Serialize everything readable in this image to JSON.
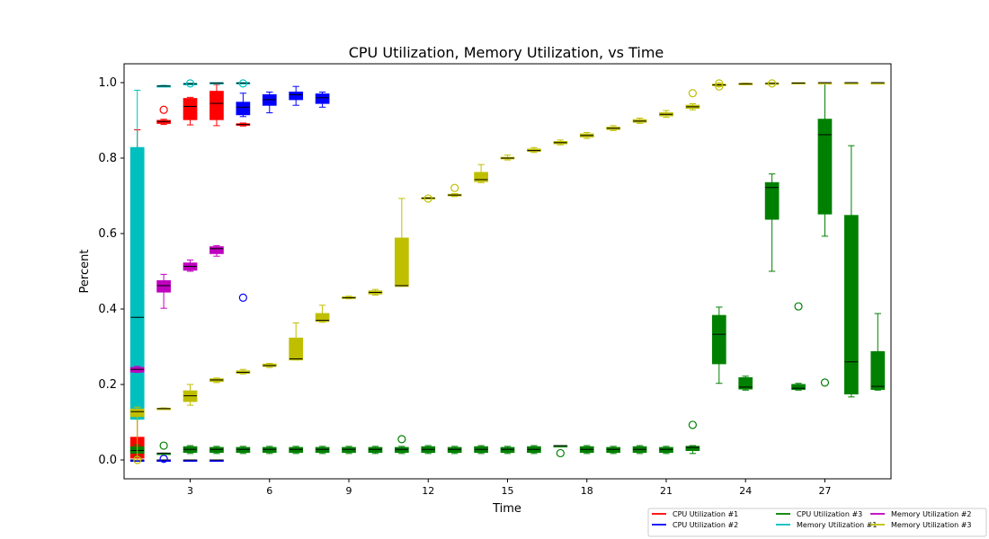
{
  "chart_data": {
    "type": "box",
    "title": "CPU Utilization, Memory Utilization, vs Time",
    "xlabel": "Time",
    "ylabel": "Percent",
    "xlim": [
      0.5,
      29.5
    ],
    "ylim": [
      -0.05,
      1.05
    ],
    "xticks": [
      3,
      6,
      9,
      12,
      15,
      18,
      21,
      24,
      27
    ],
    "yticks": [
      "0.0",
      "0.2",
      "0.4",
      "0.6",
      "0.8",
      "1.0"
    ],
    "legend_position": "bottom-right",
    "series": [
      {
        "name": "CPU Utilization #1",
        "color": "#ff0000",
        "boxes": [
          {
            "x": 1,
            "whislo": 0.0,
            "q1": 0.005,
            "med": 0.03,
            "q3": 0.06,
            "whishi": 0.875,
            "fliers": []
          },
          {
            "x": 2,
            "whislo": 0.889,
            "q1": 0.892,
            "med": 0.897,
            "q3": 0.9,
            "whishi": 0.903,
            "fliers": [
              0.928
            ]
          },
          {
            "x": 3,
            "whislo": 0.888,
            "q1": 0.902,
            "med": 0.937,
            "q3": 0.958,
            "whishi": 0.961,
            "fliers": []
          },
          {
            "x": 4,
            "whislo": 0.886,
            "q1": 0.902,
            "med": 0.945,
            "q3": 0.977,
            "whishi": 0.995,
            "fliers": []
          },
          {
            "x": 5,
            "whislo": 0.885,
            "q1": 0.887,
            "med": 0.889,
            "q3": 0.891,
            "whishi": 0.893,
            "fliers": []
          }
        ]
      },
      {
        "name": "CPU Utilization #2",
        "color": "#0000ff",
        "boxes": [
          {
            "x": 1,
            "whislo": 0.0,
            "q1": 0.0,
            "med": 0.0,
            "q3": 0.0,
            "whishi": 0.0,
            "fliers": []
          },
          {
            "x": 2,
            "whislo": 0.0,
            "q1": 0.0,
            "med": 0.0,
            "q3": 0.0,
            "whishi": 0.0,
            "fliers": [
              0.003
            ]
          },
          {
            "x": 3,
            "whislo": 0.0,
            "q1": 0.0,
            "med": 0.0,
            "q3": 0.0,
            "whishi": 0.0,
            "fliers": []
          },
          {
            "x": 4,
            "whislo": 0.0,
            "q1": 0.0,
            "med": 0.0,
            "q3": 0.0,
            "whishi": 0.0,
            "fliers": []
          },
          {
            "x": 5,
            "whislo": 0.91,
            "q1": 0.915,
            "med": 0.935,
            "q3": 0.948,
            "whishi": 0.972,
            "fliers": [
              0.43
            ]
          },
          {
            "x": 6,
            "whislo": 0.92,
            "q1": 0.94,
            "med": 0.955,
            "q3": 0.968,
            "whishi": 0.975,
            "fliers": []
          },
          {
            "x": 7,
            "whislo": 0.94,
            "q1": 0.955,
            "med": 0.968,
            "q3": 0.975,
            "whishi": 0.99,
            "fliers": []
          },
          {
            "x": 8,
            "whislo": 0.935,
            "q1": 0.945,
            "med": 0.96,
            "q3": 0.97,
            "whishi": 0.975,
            "fliers": []
          }
        ]
      },
      {
        "name": "CPU Utilization #3",
        "color": "#008000",
        "boxes": [
          {
            "x": 1,
            "whislo": 0.01,
            "q1": 0.018,
            "med": 0.025,
            "q3": 0.035,
            "whishi": 0.04,
            "fliers": []
          },
          {
            "x": 2,
            "whislo": 0.018,
            "q1": 0.018,
            "med": 0.018,
            "q3": 0.018,
            "whishi": 0.018,
            "fliers": [
              0.038
            ]
          },
          {
            "x": 3,
            "whislo": 0.017,
            "q1": 0.02,
            "med": 0.028,
            "q3": 0.035,
            "whishi": 0.038,
            "fliers": []
          },
          {
            "x": 4,
            "whislo": 0.017,
            "q1": 0.02,
            "med": 0.028,
            "q3": 0.033,
            "whishi": 0.036,
            "fliers": []
          },
          {
            "x": 5,
            "whislo": 0.017,
            "q1": 0.02,
            "med": 0.028,
            "q3": 0.033,
            "whishi": 0.036,
            "fliers": []
          },
          {
            "x": 6,
            "whislo": 0.017,
            "q1": 0.02,
            "med": 0.028,
            "q3": 0.033,
            "whishi": 0.036,
            "fliers": []
          },
          {
            "x": 7,
            "whislo": 0.017,
            "q1": 0.02,
            "med": 0.028,
            "q3": 0.033,
            "whishi": 0.036,
            "fliers": []
          },
          {
            "x": 8,
            "whislo": 0.017,
            "q1": 0.02,
            "med": 0.028,
            "q3": 0.033,
            "whishi": 0.036,
            "fliers": []
          },
          {
            "x": 9,
            "whislo": 0.017,
            "q1": 0.02,
            "med": 0.028,
            "q3": 0.033,
            "whishi": 0.036,
            "fliers": []
          },
          {
            "x": 10,
            "whislo": 0.017,
            "q1": 0.02,
            "med": 0.028,
            "q3": 0.033,
            "whishi": 0.036,
            "fliers": []
          },
          {
            "x": 11,
            "whislo": 0.017,
            "q1": 0.02,
            "med": 0.028,
            "q3": 0.033,
            "whishi": 0.036,
            "fliers": [
              0.055
            ]
          },
          {
            "x": 12,
            "whislo": 0.017,
            "q1": 0.02,
            "med": 0.028,
            "q3": 0.035,
            "whishi": 0.038,
            "fliers": []
          },
          {
            "x": 13,
            "whislo": 0.017,
            "q1": 0.02,
            "med": 0.028,
            "q3": 0.033,
            "whishi": 0.036,
            "fliers": []
          },
          {
            "x": 14,
            "whislo": 0.017,
            "q1": 0.02,
            "med": 0.028,
            "q3": 0.035,
            "whishi": 0.038,
            "fliers": []
          },
          {
            "x": 15,
            "whislo": 0.017,
            "q1": 0.02,
            "med": 0.028,
            "q3": 0.033,
            "whishi": 0.036,
            "fliers": []
          },
          {
            "x": 16,
            "whislo": 0.017,
            "q1": 0.02,
            "med": 0.028,
            "q3": 0.035,
            "whishi": 0.038,
            "fliers": []
          },
          {
            "x": 17,
            "whislo": 0.038,
            "q1": 0.038,
            "med": 0.038,
            "q3": 0.038,
            "whishi": 0.038,
            "fliers": [
              0.018
            ]
          },
          {
            "x": 18,
            "whislo": 0.017,
            "q1": 0.02,
            "med": 0.028,
            "q3": 0.035,
            "whishi": 0.038,
            "fliers": []
          },
          {
            "x": 19,
            "whislo": 0.017,
            "q1": 0.02,
            "med": 0.028,
            "q3": 0.033,
            "whishi": 0.036,
            "fliers": []
          },
          {
            "x": 20,
            "whislo": 0.017,
            "q1": 0.02,
            "med": 0.028,
            "q3": 0.035,
            "whishi": 0.038,
            "fliers": []
          },
          {
            "x": 21,
            "whislo": 0.017,
            "q1": 0.02,
            "med": 0.028,
            "q3": 0.033,
            "whishi": 0.036,
            "fliers": []
          },
          {
            "x": 22,
            "whislo": 0.017,
            "q1": 0.025,
            "med": 0.033,
            "q3": 0.036,
            "whishi": 0.038,
            "fliers": [
              0.093
            ]
          },
          {
            "x": 23,
            "whislo": 0.203,
            "q1": 0.255,
            "med": 0.333,
            "q3": 0.383,
            "whishi": 0.405,
            "fliers": []
          },
          {
            "x": 24,
            "whislo": 0.185,
            "q1": 0.188,
            "med": 0.193,
            "q3": 0.218,
            "whishi": 0.222,
            "fliers": []
          },
          {
            "x": 25,
            "whislo": 0.5,
            "q1": 0.638,
            "med": 0.722,
            "q3": 0.735,
            "whishi": 0.758,
            "fliers": []
          },
          {
            "x": 26,
            "whislo": 0.185,
            "q1": 0.187,
            "med": 0.19,
            "q3": 0.2,
            "whishi": 0.203,
            "fliers": [
              0.407
            ]
          },
          {
            "x": 27,
            "whislo": 0.593,
            "q1": 0.652,
            "med": 0.862,
            "q3": 0.903,
            "whishi": 1.0,
            "fliers": [
              0.205
            ]
          },
          {
            "x": 28,
            "whislo": 0.167,
            "q1": 0.175,
            "med": 0.26,
            "q3": 0.648,
            "whishi": 0.833,
            "fliers": []
          },
          {
            "x": 29,
            "whislo": 0.185,
            "q1": 0.187,
            "med": 0.195,
            "q3": 0.287,
            "whishi": 0.388,
            "fliers": []
          }
        ]
      },
      {
        "name": "Memory Utilization #1",
        "color": "#00bfbf",
        "boxes": [
          {
            "x": 1,
            "whislo": 0.108,
            "q1": 0.108,
            "med": 0.378,
            "q3": 0.828,
            "whishi": 0.98,
            "fliers": []
          },
          {
            "x": 2,
            "whislo": 0.989,
            "q1": 0.99,
            "med": 0.991,
            "q3": 0.992,
            "whishi": 0.993,
            "fliers": []
          },
          {
            "x": 3,
            "whislo": 0.995,
            "q1": 0.996,
            "med": 0.997,
            "q3": 0.998,
            "whishi": 0.999,
            "fliers": [
              0.998
            ]
          },
          {
            "x": 4,
            "whislo": 0.998,
            "q1": 0.999,
            "med": 0.999,
            "q3": 1.0,
            "whishi": 1.0,
            "fliers": []
          },
          {
            "x": 5,
            "whislo": 0.997,
            "q1": 0.998,
            "med": 0.999,
            "q3": 1.0,
            "whishi": 1.0,
            "fliers": [
              0.998
            ]
          }
        ]
      },
      {
        "name": "Memory Utilization #2",
        "color": "#bf00bf",
        "boxes": [
          {
            "x": 1,
            "whislo": 0.232,
            "q1": 0.233,
            "med": 0.24,
            "q3": 0.245,
            "whishi": 0.248,
            "fliers": []
          },
          {
            "x": 2,
            "whislo": 0.402,
            "q1": 0.445,
            "med": 0.462,
            "q3": 0.475,
            "whishi": 0.492,
            "fliers": []
          },
          {
            "x": 3,
            "whislo": 0.5,
            "q1": 0.503,
            "med": 0.513,
            "q3": 0.522,
            "whishi": 0.53,
            "fliers": []
          },
          {
            "x": 4,
            "whislo": 0.54,
            "q1": 0.547,
            "med": 0.56,
            "q3": 0.565,
            "whishi": 0.568,
            "fliers": []
          }
        ]
      },
      {
        "name": "Memory Utilization #3",
        "color": "#bfbf00",
        "boxes": [
          {
            "x": 1,
            "whislo": 0.0,
            "q1": 0.115,
            "med": 0.128,
            "q3": 0.135,
            "whishi": 0.14,
            "fliers": [
              0.0
            ]
          },
          {
            "x": 2,
            "whislo": 0.134,
            "q1": 0.135,
            "med": 0.136,
            "q3": 0.137,
            "whishi": 0.138,
            "fliers": []
          },
          {
            "x": 3,
            "whislo": 0.145,
            "q1": 0.155,
            "med": 0.17,
            "q3": 0.183,
            "whishi": 0.2,
            "fliers": []
          },
          {
            "x": 4,
            "whislo": 0.205,
            "q1": 0.208,
            "med": 0.212,
            "q3": 0.215,
            "whishi": 0.217,
            "fliers": []
          },
          {
            "x": 5,
            "whislo": 0.228,
            "q1": 0.23,
            "med": 0.232,
            "q3": 0.236,
            "whishi": 0.24,
            "fliers": []
          },
          {
            "x": 6,
            "whislo": 0.245,
            "q1": 0.248,
            "med": 0.25,
            "q3": 0.254,
            "whishi": 0.256,
            "fliers": []
          },
          {
            "x": 7,
            "whislo": 0.265,
            "q1": 0.265,
            "med": 0.268,
            "q3": 0.323,
            "whishi": 0.363,
            "fliers": []
          },
          {
            "x": 8,
            "whislo": 0.365,
            "q1": 0.367,
            "med": 0.37,
            "q3": 0.388,
            "whishi": 0.41,
            "fliers": []
          },
          {
            "x": 9,
            "whislo": 0.427,
            "q1": 0.428,
            "med": 0.43,
            "q3": 0.432,
            "whishi": 0.434,
            "fliers": []
          },
          {
            "x": 10,
            "whislo": 0.437,
            "q1": 0.44,
            "med": 0.444,
            "q3": 0.448,
            "whishi": 0.452,
            "fliers": []
          },
          {
            "x": 11,
            "whislo": 0.46,
            "q1": 0.46,
            "med": 0.462,
            "q3": 0.588,
            "whishi": 0.693,
            "fliers": []
          },
          {
            "x": 12,
            "whislo": 0.692,
            "q1": 0.693,
            "med": 0.694,
            "q3": 0.695,
            "whishi": 0.696,
            "fliers": [
              0.693
            ]
          },
          {
            "x": 13,
            "whislo": 0.698,
            "q1": 0.7,
            "med": 0.702,
            "q3": 0.704,
            "whishi": 0.706,
            "fliers": [
              0.721
            ]
          },
          {
            "x": 14,
            "whislo": 0.735,
            "q1": 0.738,
            "med": 0.743,
            "q3": 0.762,
            "whishi": 0.783,
            "fliers": []
          },
          {
            "x": 15,
            "whislo": 0.795,
            "q1": 0.798,
            "med": 0.8,
            "q3": 0.802,
            "whishi": 0.808,
            "fliers": []
          },
          {
            "x": 16,
            "whislo": 0.815,
            "q1": 0.818,
            "med": 0.82,
            "q3": 0.824,
            "whishi": 0.828,
            "fliers": []
          },
          {
            "x": 17,
            "whislo": 0.835,
            "q1": 0.838,
            "med": 0.841,
            "q3": 0.844,
            "whishi": 0.848,
            "fliers": []
          },
          {
            "x": 18,
            "whislo": 0.852,
            "q1": 0.856,
            "med": 0.86,
            "q3": 0.864,
            "whishi": 0.868,
            "fliers": []
          },
          {
            "x": 19,
            "whislo": 0.873,
            "q1": 0.876,
            "med": 0.879,
            "q3": 0.882,
            "whishi": 0.886,
            "fliers": []
          },
          {
            "x": 20,
            "whislo": 0.892,
            "q1": 0.895,
            "med": 0.898,
            "q3": 0.902,
            "whishi": 0.906,
            "fliers": []
          },
          {
            "x": 21,
            "whislo": 0.908,
            "q1": 0.912,
            "med": 0.916,
            "q3": 0.92,
            "whishi": 0.926,
            "fliers": []
          },
          {
            "x": 22,
            "whislo": 0.928,
            "q1": 0.932,
            "med": 0.936,
            "q3": 0.94,
            "whishi": 0.944,
            "fliers": [
              0.972
            ]
          },
          {
            "x": 23,
            "whislo": 0.99,
            "q1": 0.992,
            "med": 0.994,
            "q3": 0.996,
            "whishi": 0.998,
            "fliers": [
              0.99,
              0.998
            ]
          },
          {
            "x": 24,
            "whislo": 0.995,
            "q1": 0.996,
            "med": 0.997,
            "q3": 0.998,
            "whishi": 0.999,
            "fliers": []
          },
          {
            "x": 25,
            "whislo": 0.997,
            "q1": 0.998,
            "med": 0.998,
            "q3": 0.999,
            "whishi": 1.0,
            "fliers": [
              0.998
            ]
          },
          {
            "x": 26,
            "whislo": 0.998,
            "q1": 0.999,
            "med": 0.999,
            "q3": 1.0,
            "whishi": 1.0,
            "fliers": []
          },
          {
            "x": 27,
            "whislo": 0.999,
            "q1": 0.999,
            "med": 1.0,
            "q3": 1.0,
            "whishi": 1.0,
            "fliers": []
          },
          {
            "x": 28,
            "whislo": 0.999,
            "q1": 0.999,
            "med": 1.0,
            "q3": 1.0,
            "whishi": 1.0,
            "fliers": []
          },
          {
            "x": 29,
            "whislo": 0.999,
            "q1": 0.999,
            "med": 1.0,
            "q3": 1.0,
            "whishi": 1.0,
            "fliers": []
          }
        ]
      }
    ]
  }
}
